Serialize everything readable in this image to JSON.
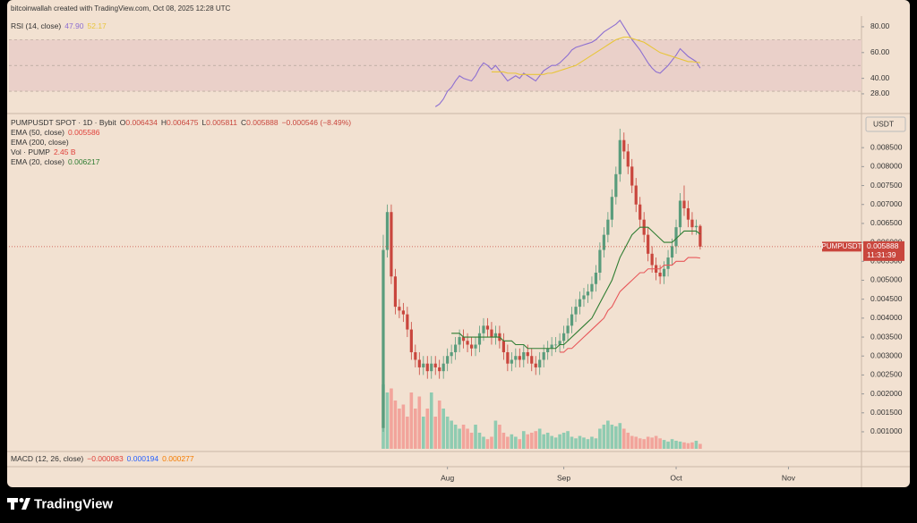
{
  "watermark": "bitcoinwallah created with TradingView.com, Oct 08, 2025 12:28 UTC",
  "logo": "TradingView",
  "chart_data": [
    {
      "type": "rsi",
      "title": "RSI (14, close)",
      "legend_values": [
        {
          "value": "47.90",
          "color": "#8d6fd1"
        },
        {
          "value": "52.17",
          "color": "#e8c53a"
        }
      ],
      "xlim": [
        -93.3,
        119.2
      ],
      "ylim": [
        14.1,
        86.9
      ],
      "yticks": [
        {
          "value": 80,
          "label": "80.00"
        },
        {
          "value": 60,
          "label": "60.00"
        },
        {
          "value": 40,
          "label": "40.00"
        },
        {
          "value": 28,
          "label": "28.00"
        }
      ],
      "band": [
        30,
        70
      ],
      "band_color": "#ead0c9",
      "midline": 50,
      "series": [
        {
          "color": "#8d6fd1",
          "values": [
            null,
            null,
            null,
            null,
            null,
            null,
            null,
            null,
            null,
            null,
            null,
            null,
            null,
            18,
            20,
            24,
            30,
            33,
            38,
            42,
            40,
            39,
            38,
            42,
            48,
            52,
            50,
            47,
            50,
            46,
            42,
            38,
            40,
            42,
            40,
            44,
            42,
            40,
            38,
            42,
            46,
            48,
            50,
            50,
            52,
            55,
            58,
            62,
            64,
            65,
            66,
            67,
            68,
            70,
            73,
            76,
            78,
            80,
            82,
            85,
            80,
            75,
            70,
            66,
            62,
            57,
            52,
            48,
            45,
            44,
            47,
            50,
            54,
            58,
            63,
            60,
            57,
            55,
            53,
            47.9
          ]
        },
        {
          "color": "#e8c53a",
          "values": [
            null,
            null,
            null,
            null,
            null,
            null,
            null,
            null,
            null,
            null,
            null,
            null,
            null,
            null,
            null,
            null,
            null,
            null,
            null,
            null,
            null,
            null,
            null,
            null,
            null,
            null,
            null,
            45,
            45,
            45,
            45,
            44,
            44,
            44,
            43,
            43,
            43,
            43,
            43,
            43,
            43,
            44,
            44,
            45,
            46,
            47,
            48,
            49,
            50,
            52,
            54,
            56,
            58,
            60,
            62,
            64,
            66,
            68,
            70,
            71,
            72,
            72,
            71,
            70,
            69,
            68,
            66,
            64,
            62,
            60,
            59,
            58,
            57,
            56,
            55,
            54,
            53,
            53,
            52.5,
            52.17
          ]
        }
      ]
    },
    {
      "type": "candlestick",
      "title": "PUMPUSDT SPOT · 1D · Bybit",
      "ohlc_legend": [
        {
          "key": "O",
          "value": "0.006434"
        },
        {
          "key": "H",
          "value": "0.006475"
        },
        {
          "key": "L",
          "value": "0.005811"
        },
        {
          "key": "C",
          "value": "0.005888"
        }
      ],
      "change": "−0.000546 (−8.49%)",
      "indicator_legend": [
        {
          "name": "EMA (50, close)",
          "value": "0.005586",
          "color": "#e0403a"
        },
        {
          "name": "EMA (200, close)"
        },
        {
          "name": "Vol · PUMP",
          "value": "2.45 B",
          "color": "#e0403a"
        },
        {
          "name": "EMA (20, close)",
          "value": "0.006217",
          "color": "#2f7d32"
        }
      ],
      "currency": "USDT",
      "symbol_tag": "PUMPUSDT",
      "last_price_label": "0.005888",
      "countdown": "11:31:39",
      "xlim": [
        -93.3,
        119.2
      ],
      "xticks": [
        {
          "value": 16,
          "label": "Aug"
        },
        {
          "value": 45,
          "label": "Sep"
        },
        {
          "value": 73,
          "label": "Oct"
        },
        {
          "value": 101,
          "label": "Nov"
        }
      ],
      "ylim": [
        0.00048,
        0.00933
      ],
      "yticks": [
        {
          "value": 0.0085,
          "label": "0.008500"
        },
        {
          "value": 0.008,
          "label": "0.008000"
        },
        {
          "value": 0.0075,
          "label": "0.007500"
        },
        {
          "value": 0.007,
          "label": "0.007000"
        },
        {
          "value": 0.0065,
          "label": "0.006500"
        },
        {
          "value": 0.006,
          "label": "0.006000"
        },
        {
          "value": 0.0055,
          "label": "0.005500"
        },
        {
          "value": 0.005,
          "label": "0.005000"
        },
        {
          "value": 0.0045,
          "label": "0.004500"
        },
        {
          "value": 0.004,
          "label": "0.004000"
        },
        {
          "value": 0.0035,
          "label": "0.003500"
        },
        {
          "value": 0.003,
          "label": "0.003000"
        },
        {
          "value": 0.0025,
          "label": "0.002500"
        },
        {
          "value": 0.002,
          "label": "0.002000"
        },
        {
          "value": 0.0015,
          "label": "0.001500"
        },
        {
          "value": 0.001,
          "label": "0.001000"
        }
      ],
      "up_color": "#5a9c7c",
      "down_color": "#c9463d",
      "open": [
        0.0011,
        0.0058,
        0.0068,
        0.0051,
        0.0043,
        0.0042,
        0.0041,
        0.0037,
        0.0031,
        0.0029,
        0.0027,
        0.0028,
        0.0026,
        0.0028,
        0.0027,
        0.0026,
        0.0028,
        0.003,
        0.0031,
        0.0033,
        0.0035,
        0.0034,
        0.0033,
        0.0032,
        0.0033,
        0.0036,
        0.0038,
        0.0037,
        0.0035,
        0.0036,
        0.0034,
        0.0031,
        0.0028,
        0.0029,
        0.003,
        0.0029,
        0.0031,
        0.003,
        0.0028,
        0.0027,
        0.0029,
        0.0031,
        0.0032,
        0.0033,
        0.0033,
        0.0034,
        0.0036,
        0.0038,
        0.0041,
        0.0043,
        0.0045,
        0.0046,
        0.0047,
        0.0049,
        0.0052,
        0.0058,
        0.0062,
        0.0066,
        0.0072,
        0.0078,
        0.0087,
        0.0084,
        0.008,
        0.0075,
        0.007,
        0.0066,
        0.0062,
        0.0057,
        0.0054,
        0.0052,
        0.0051,
        0.0053,
        0.0056,
        0.0059,
        0.0064,
        0.0071,
        0.0069,
        0.0066,
        0.0064,
        0.006434
      ],
      "high": [
        0.0062,
        0.007,
        0.007,
        0.0053,
        0.0045,
        0.0044,
        0.0043,
        0.0039,
        0.0033,
        0.0031,
        0.003,
        0.003,
        0.003,
        0.003,
        0.0029,
        0.003,
        0.0032,
        0.0033,
        0.0035,
        0.0037,
        0.0037,
        0.0036,
        0.0035,
        0.0035,
        0.0038,
        0.004,
        0.004,
        0.0039,
        0.0038,
        0.0038,
        0.0036,
        0.0033,
        0.0031,
        0.0032,
        0.0032,
        0.0033,
        0.0033,
        0.0032,
        0.003,
        0.0031,
        0.0033,
        0.0034,
        0.0035,
        0.0035,
        0.0036,
        0.0038,
        0.004,
        0.0043,
        0.0045,
        0.0047,
        0.0048,
        0.0049,
        0.0051,
        0.0054,
        0.006,
        0.0064,
        0.0068,
        0.0074,
        0.008,
        0.009,
        0.0089,
        0.0086,
        0.0082,
        0.0077,
        0.0072,
        0.0068,
        0.0064,
        0.0059,
        0.0056,
        0.0054,
        0.0055,
        0.0058,
        0.0061,
        0.0066,
        0.0073,
        0.0075,
        0.0071,
        0.0068,
        0.0066,
        0.006475
      ],
      "low": [
        0.001,
        0.0056,
        0.0049,
        0.0041,
        0.004,
        0.0039,
        0.0035,
        0.0029,
        0.0027,
        0.0025,
        0.0025,
        0.0024,
        0.0024,
        0.0025,
        0.0024,
        0.0024,
        0.0026,
        0.0028,
        0.0029,
        0.0031,
        0.0032,
        0.0031,
        0.003,
        0.003,
        0.0031,
        0.0034,
        0.0035,
        0.0033,
        0.0033,
        0.0032,
        0.0029,
        0.0026,
        0.0026,
        0.0027,
        0.0027,
        0.0027,
        0.0028,
        0.0026,
        0.0025,
        0.0025,
        0.0027,
        0.0029,
        0.003,
        0.0031,
        0.0031,
        0.0032,
        0.0034,
        0.0036,
        0.0039,
        0.0041,
        0.0043,
        0.0044,
        0.0045,
        0.0047,
        0.005,
        0.0056,
        0.006,
        0.0064,
        0.007,
        0.0076,
        0.0082,
        0.0078,
        0.0073,
        0.0068,
        0.0064,
        0.006,
        0.0055,
        0.0052,
        0.005,
        0.0049,
        0.0049,
        0.0051,
        0.0054,
        0.0057,
        0.0062,
        0.0067,
        0.0064,
        0.0062,
        0.0062,
        0.005811
      ],
      "close": [
        0.0058,
        0.0068,
        0.0051,
        0.0043,
        0.0042,
        0.0041,
        0.0037,
        0.0031,
        0.0029,
        0.0027,
        0.0028,
        0.0026,
        0.0028,
        0.0027,
        0.0026,
        0.0028,
        0.003,
        0.0031,
        0.0033,
        0.0035,
        0.0034,
        0.0033,
        0.0032,
        0.0033,
        0.0036,
        0.0038,
        0.0037,
        0.0035,
        0.0036,
        0.0034,
        0.0031,
        0.0028,
        0.0029,
        0.003,
        0.0029,
        0.0031,
        0.003,
        0.0028,
        0.0027,
        0.0029,
        0.0031,
        0.0032,
        0.0033,
        0.0033,
        0.0034,
        0.0036,
        0.0038,
        0.0041,
        0.0043,
        0.0045,
        0.0046,
        0.0047,
        0.0049,
        0.0052,
        0.0058,
        0.0062,
        0.0066,
        0.0072,
        0.0078,
        0.0087,
        0.0084,
        0.008,
        0.0075,
        0.007,
        0.0066,
        0.0062,
        0.0057,
        0.0054,
        0.0052,
        0.0051,
        0.0053,
        0.0056,
        0.0059,
        0.0064,
        0.0071,
        0.0069,
        0.0066,
        0.0064,
        0.006434,
        0.005888
      ],
      "volume": {
        "ylim": [
          0,
          40
        ],
        "up_color": "#8fcbb1",
        "down_color": "#f2a49b",
        "values": [
          32,
          28,
          30,
          24,
          20,
          22,
          16,
          28,
          20,
          26,
          16,
          20,
          28,
          16,
          24,
          20,
          16,
          14,
          12,
          10,
          12,
          10,
          8,
          12,
          8,
          6,
          4.8,
          6,
          14,
          12,
          8,
          6,
          7.2,
          6,
          4.8,
          8.8,
          7.2,
          8,
          8.8,
          10,
          7.2,
          8,
          6.4,
          5.6,
          7.2,
          8,
          8.8,
          6,
          5.2,
          6.4,
          5.6,
          4.8,
          6,
          5.2,
          10,
          12,
          14,
          12,
          11.2,
          12.8,
          10,
          8,
          6.4,
          6,
          5.2,
          4.8,
          6,
          5.6,
          6.4,
          5.2,
          4.4,
          3.6,
          4.8,
          4,
          3.6,
          3.2,
          2.8,
          3.2,
          4,
          2.45
        ]
      },
      "series": [
        {
          "color": "#2f7d32",
          "values": [
            null,
            null,
            null,
            null,
            null,
            null,
            null,
            null,
            null,
            null,
            null,
            null,
            null,
            null,
            null,
            null,
            null,
            0.0036,
            0.0036,
            0.0036,
            0.0035,
            0.0035,
            0.0035,
            0.0035,
            0.0035,
            0.0035,
            0.0035,
            0.0035,
            0.0035,
            0.0035,
            0.0034,
            0.0034,
            0.0034,
            0.0033,
            0.0033,
            0.0033,
            0.0032,
            0.0032,
            0.0032,
            0.0032,
            0.0032,
            0.0032,
            0.0032,
            0.0032,
            0.0033,
            0.0033,
            0.0034,
            0.0035,
            0.0036,
            0.0037,
            0.0038,
            0.0039,
            0.004,
            0.0042,
            0.0044,
            0.0046,
            0.0048,
            0.005,
            0.0053,
            0.0056,
            0.0058,
            0.006,
            0.0062,
            0.0063,
            0.0064,
            0.0064,
            0.0064,
            0.0063,
            0.0062,
            0.0061,
            0.006,
            0.006,
            0.006,
            0.0061,
            0.0062,
            0.0063,
            0.0063,
            0.0063,
            0.0063,
            0.006217
          ]
        },
        {
          "color": "#e8585a",
          "values": [
            null,
            null,
            null,
            null,
            null,
            null,
            null,
            null,
            null,
            null,
            null,
            null,
            null,
            null,
            null,
            null,
            null,
            null,
            null,
            null,
            null,
            null,
            null,
            null,
            null,
            null,
            null,
            null,
            null,
            null,
            null,
            null,
            null,
            null,
            null,
            null,
            null,
            null,
            null,
            null,
            null,
            null,
            null,
            null,
            0.0031,
            0.0031,
            0.0032,
            0.0032,
            0.0033,
            0.0034,
            0.0035,
            0.0036,
            0.0037,
            0.0038,
            0.0039,
            0.004,
            0.0042,
            0.0043,
            0.0045,
            0.0047,
            0.0048,
            0.0049,
            0.005,
            0.0051,
            0.0052,
            0.0052,
            0.0053,
            0.0053,
            0.0053,
            0.0053,
            0.0054,
            0.0054,
            0.0054,
            0.0055,
            0.0055,
            0.0055,
            0.0056,
            0.0056,
            0.0056,
            0.005586
          ]
        }
      ]
    },
    {
      "type": "macd",
      "title": "MACD (12, 26, close)",
      "legend_values": [
        {
          "value": "−0.000083",
          "color": "#e0403a"
        },
        {
          "value": "0.000194",
          "color": "#2962ff"
        },
        {
          "value": "0.000277",
          "color": "#f57c00"
        }
      ]
    }
  ]
}
